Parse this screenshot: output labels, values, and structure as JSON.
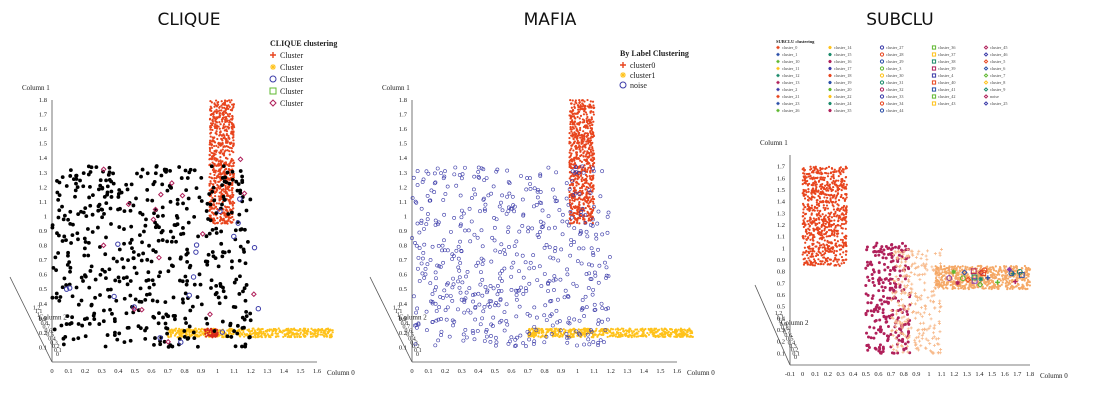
{
  "chart_data": [
    {
      "type": "scatter",
      "title": "CLIQUE",
      "legend_title": "CLIQUE clustering",
      "legend_position": "top-right",
      "legend": [
        {
          "label": "Cluster",
          "marker": "plus",
          "color": "#e8451e"
        },
        {
          "label": "Cluster",
          "marker": "star",
          "color": "#ffc21a"
        },
        {
          "label": "Cluster",
          "marker": "circle",
          "color": "#3a3aa8"
        },
        {
          "label": "Cluster",
          "marker": "square",
          "color": "#5fb830"
        },
        {
          "label": "Cluster",
          "marker": "diamond",
          "color": "#b0205a"
        }
      ],
      "xlabel": "Column 0",
      "ylabel": "Column 1",
      "zlabel": "Column 2",
      "x_ticks": [
        "0",
        "0.1",
        "0.2",
        "0.3",
        "0.4",
        "0.5",
        "0.6",
        "0.7",
        "0.8",
        "0.9",
        "1",
        "1.1",
        "1.2",
        "1.3",
        "1.4",
        "1.5",
        "1.6"
      ],
      "y_ticks": [
        "0.1",
        "0.2",
        "0.3",
        "0.4",
        "0.5",
        "0.6",
        "0.7",
        "0.8",
        "0.9",
        "1",
        "1.1",
        "1.2",
        "1.3",
        "1.4",
        "1.5",
        "1.6",
        "1.7",
        "1.8"
      ],
      "z_ticks": [
        "0",
        "0.1",
        "0.2",
        "0.3",
        "0.4",
        "0.5",
        "0.6",
        "0.7",
        "0.8",
        "0.9",
        "1",
        "1.1",
        "1.2"
      ],
      "xlim": [
        0,
        1.6
      ],
      "ylim": [
        0,
        1.8
      ],
      "clusters": [
        {
          "name": "vertical",
          "color": "#e8451e",
          "x_range": [
            0.95,
            1.1
          ],
          "y_range": [
            0.95,
            1.8
          ],
          "n": 700
        },
        {
          "name": "horizontal",
          "color": "#ffc21a",
          "x_range": [
            0.7,
            1.7
          ],
          "y_range": [
            0.17,
            0.23
          ],
          "n": 500
        },
        {
          "name": "overlap",
          "color": "#d82a1a",
          "x_range": [
            0.92,
            1.0
          ],
          "y_range": [
            0.17,
            0.23
          ],
          "n": 60
        },
        {
          "name": "noise",
          "color": "#000000",
          "x_range": [
            0.0,
            1.2
          ],
          "y_range": [
            0.1,
            1.35
          ],
          "n": 520
        }
      ]
    },
    {
      "type": "scatter",
      "title": "MAFIA",
      "legend_title": "By Label Clustering",
      "legend_position": "top-right",
      "legend": [
        {
          "label": "cluster0",
          "marker": "plus",
          "color": "#e8451e"
        },
        {
          "label": "cluster1",
          "marker": "star",
          "color": "#ffc21a"
        },
        {
          "label": "noise",
          "marker": "circle",
          "color": "#3a3aa8"
        }
      ],
      "xlabel": "Column 0",
      "ylabel": "Column 1",
      "zlabel": "Column 2",
      "x_ticks": [
        "0",
        "0.1",
        "0.2",
        "0.3",
        "0.4",
        "0.5",
        "0.6",
        "0.7",
        "0.8",
        "0.9",
        "1",
        "1.1",
        "1.2",
        "1.3",
        "1.4",
        "1.5",
        "1.6"
      ],
      "y_ticks": [
        "0.1",
        "0.2",
        "0.3",
        "0.4",
        "0.5",
        "0.6",
        "0.7",
        "0.8",
        "0.9",
        "1",
        "1.1",
        "1.2",
        "1.3",
        "1.4",
        "1.5",
        "1.6",
        "1.7",
        "1.8"
      ],
      "z_ticks": [
        "0",
        "0.1",
        "0.2",
        "0.3",
        "0.4",
        "0.5",
        "0.6",
        "0.7",
        "0.8",
        "0.9",
        "1",
        "1.1",
        "1.2"
      ],
      "xlim": [
        0,
        1.6
      ],
      "ylim": [
        0,
        1.8
      ],
      "clusters": [
        {
          "name": "cluster0",
          "color": "#e8451e",
          "x_range": [
            0.95,
            1.1
          ],
          "y_range": [
            0.95,
            1.8
          ],
          "n": 700
        },
        {
          "name": "cluster1",
          "color": "#ffc21a",
          "x_range": [
            0.7,
            1.7
          ],
          "y_range": [
            0.17,
            0.23
          ],
          "n": 500
        },
        {
          "name": "noise",
          "color": "#3a3aa8",
          "x_range": [
            0.0,
            1.2
          ],
          "y_range": [
            0.1,
            1.35
          ],
          "n": 560
        }
      ]
    },
    {
      "type": "scatter",
      "title": "SUBCLU",
      "legend_title": "SUBCLU clustering",
      "legend_position": "top",
      "legend": [
        "cluster_0",
        "cluster_14",
        "cluster_27",
        "cluster_36",
        "cluster_45",
        "cluster_1",
        "cluster_15",
        "cluster_28",
        "cluster_37",
        "cluster_46",
        "cluster_10",
        "cluster_16",
        "cluster_29",
        "cluster_38",
        "cluster_5",
        "cluster_11",
        "cluster_17",
        "cluster_3",
        "cluster_39",
        "cluster_6",
        "cluster_12",
        "cluster_18",
        "cluster_30",
        "cluster_4",
        "cluster_7",
        "cluster_13",
        "cluster_19",
        "cluster_31",
        "cluster_40",
        "cluster_8",
        "cluster_2",
        "cluster_20",
        "cluster_32",
        "cluster_41",
        "cluster_9",
        "cluster_21",
        "cluster_22",
        "cluster_33",
        "cluster_42",
        "noise",
        "cluster_23",
        "cluster_24",
        "cluster_34",
        "cluster_43",
        "cluster_25",
        "cluster_26",
        "cluster_35",
        "cluster_44"
      ],
      "xlabel": "Column 0",
      "ylabel": "Column 1",
      "zlabel": "Column 2",
      "x_ticks": [
        "-0.1",
        "0",
        "0.1",
        "0.2",
        "0.3",
        "0.4",
        "0.5",
        "0.6",
        "0.7",
        "0.8",
        "0.9",
        "1",
        "1.1",
        "1.2",
        "1.3",
        "1.4",
        "1.5",
        "1.6",
        "1.7",
        "1.8"
      ],
      "y_ticks": [
        "0.1",
        "0.2",
        "0.3",
        "0.4",
        "0.5",
        "0.6",
        "0.7",
        "0.8",
        "0.9",
        "1",
        "1.1",
        "1.2",
        "1.3",
        "1.4",
        "1.5",
        "1.6",
        "1.7"
      ],
      "z_ticks": [
        "0",
        "0.1",
        "0.2",
        "0.3",
        "0.4",
        "0.5",
        "0.6",
        "0.7",
        "0.8",
        "0.9",
        "1",
        "1.1",
        "1.2"
      ],
      "xlim": [
        -0.1,
        1.8
      ],
      "ylim": [
        0,
        1.8
      ],
      "clusters": [
        {
          "name": "vertical",
          "color": "#e8451e",
          "x_range": [
            0.0,
            0.35
          ],
          "y_range": [
            0.85,
            1.7
          ],
          "n": 800
        },
        {
          "name": "horizontal",
          "color": "#f5a866",
          "x_range": [
            1.05,
            1.8
          ],
          "y_range": [
            0.65,
            0.85
          ],
          "n": 650
        },
        {
          "name": "magenta",
          "color": "#b0205a",
          "x_range": [
            0.5,
            0.85
          ],
          "y_range": [
            0.1,
            1.05
          ],
          "n": 260
        },
        {
          "name": "noise",
          "color": "#f7b98a",
          "x_range": [
            0.7,
            1.1
          ],
          "y_range": [
            0.1,
            1.0
          ],
          "n": 260
        }
      ]
    }
  ]
}
